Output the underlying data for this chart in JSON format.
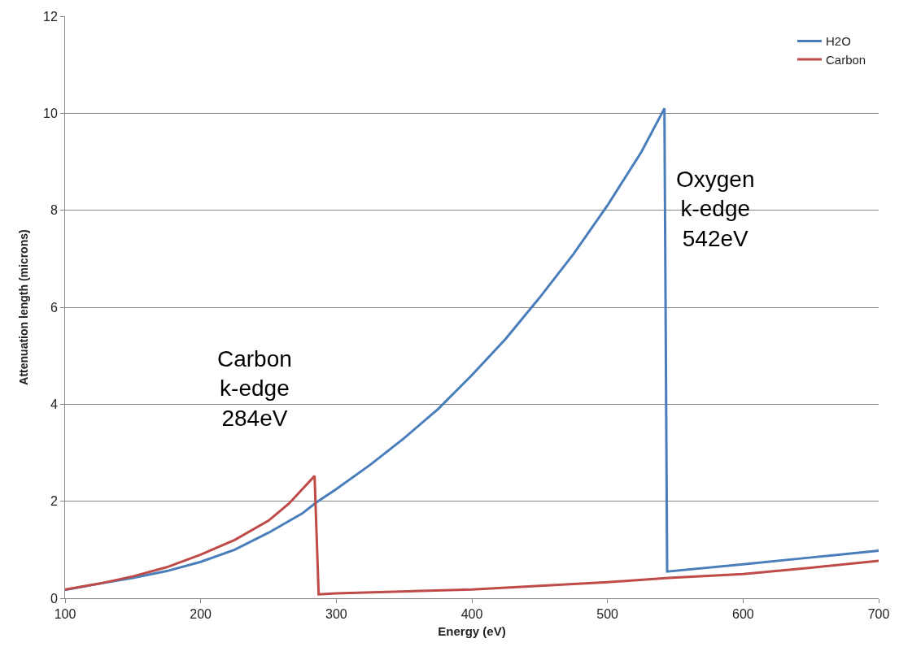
{
  "chart_data": {
    "type": "line",
    "xlabel": "Energy (eV)",
    "ylabel": "Attenuation length (microns)",
    "xlim": [
      100,
      700
    ],
    "xticks": [
      100,
      200,
      300,
      400,
      500,
      600,
      700
    ],
    "ylim": [
      0,
      12
    ],
    "yticks": [
      0,
      2,
      4,
      6,
      8,
      10,
      12
    ],
    "grid": "y",
    "legend": "top right",
    "marker": "none",
    "line_style": "solid",
    "series": [
      {
        "name": "H2O",
        "color": "#4a7ebb",
        "x": [
          100,
          125,
          150,
          175,
          200,
          225,
          250,
          275,
          285,
          300,
          325,
          350,
          375,
          400,
          425,
          450,
          475,
          500,
          525,
          542,
          544,
          600,
          650,
          700
        ],
        "values": [
          0.17,
          0.3,
          0.42,
          0.56,
          0.75,
          1.0,
          1.35,
          1.75,
          1.97,
          2.25,
          2.75,
          3.3,
          3.9,
          4.6,
          5.35,
          6.2,
          7.1,
          8.1,
          9.2,
          10.1,
          0.55,
          0.7,
          0.84,
          0.98
        ]
      },
      {
        "name": "Carbon",
        "color": "#be4b48",
        "x": [
          100,
          125,
          150,
          175,
          200,
          225,
          250,
          265,
          275,
          284,
          287,
          300,
          400,
          500,
          545,
          600,
          650,
          700
        ],
        "values": [
          0.18,
          0.3,
          0.45,
          0.64,
          0.9,
          1.2,
          1.6,
          1.95,
          2.25,
          2.52,
          0.08,
          0.1,
          0.18,
          0.33,
          0.42,
          0.5,
          0.63,
          0.77
        ]
      }
    ],
    "annotations": [
      "Carbon\nk-edge\n284eV",
      "Oxygen\nk-edge\n542eV"
    ]
  }
}
